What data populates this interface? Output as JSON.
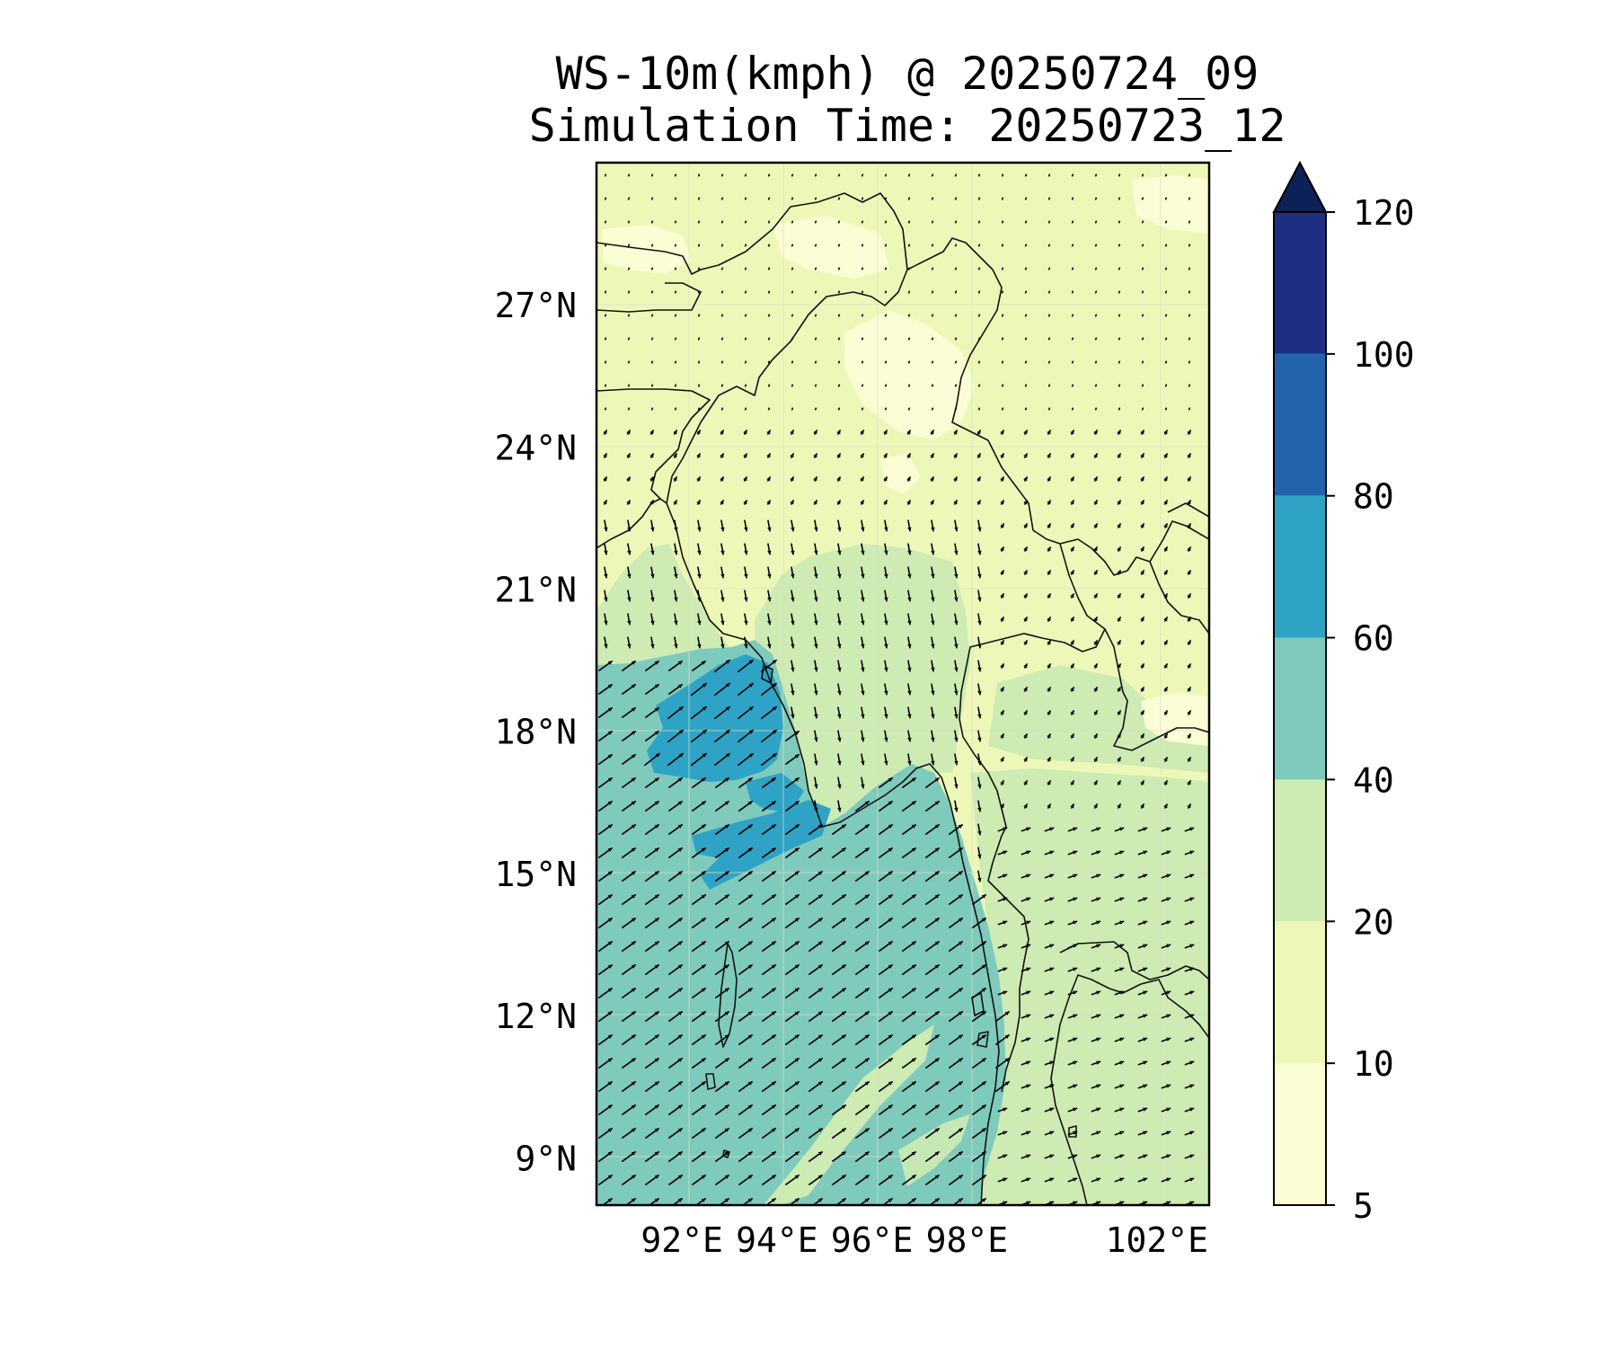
{
  "title": {
    "line1": "WS-10m(kmph) @ 20250724_09",
    "line2": "Simulation Time: 20250723_12"
  },
  "map": {
    "lon_range": [
      90.2,
      103.1
    ],
    "lat_range": [
      8,
      30
    ],
    "lon_ticks": [
      {
        "value": 92,
        "label": "92°E"
      },
      {
        "value": 94,
        "label": "94°E"
      },
      {
        "value": 96,
        "label": "96°E"
      },
      {
        "value": 98,
        "label": "98°E"
      },
      {
        "value": 102,
        "label": "102°E"
      }
    ],
    "lat_ticks": [
      {
        "value": 27,
        "label": "27°N"
      },
      {
        "value": 24,
        "label": "24°N"
      },
      {
        "value": 21,
        "label": "21°N"
      },
      {
        "value": 18,
        "label": "18°N"
      },
      {
        "value": 15,
        "label": "15°N"
      },
      {
        "value": 12,
        "label": "12°N"
      },
      {
        "value": 9,
        "label": "9°N"
      }
    ],
    "gridlines": true,
    "vector_field": "10m wind arrows"
  },
  "colorbar": {
    "extend": "max",
    "extend_color": "#0d2057",
    "levels": [
      {
        "value": 5,
        "label": "5"
      },
      {
        "value": 10,
        "label": "10"
      },
      {
        "value": 20,
        "label": "20"
      },
      {
        "value": 40,
        "label": "40"
      },
      {
        "value": 60,
        "label": "60"
      },
      {
        "value": 80,
        "label": "80"
      },
      {
        "value": 100,
        "label": "100"
      },
      {
        "value": 120,
        "label": "120"
      }
    ],
    "colors": [
      "#fbfdd4",
      "#edf8b8",
      "#cdebb2",
      "#7ecbbd",
      "#2fa3c5",
      "#2164ab",
      "#1e2e83"
    ]
  }
}
